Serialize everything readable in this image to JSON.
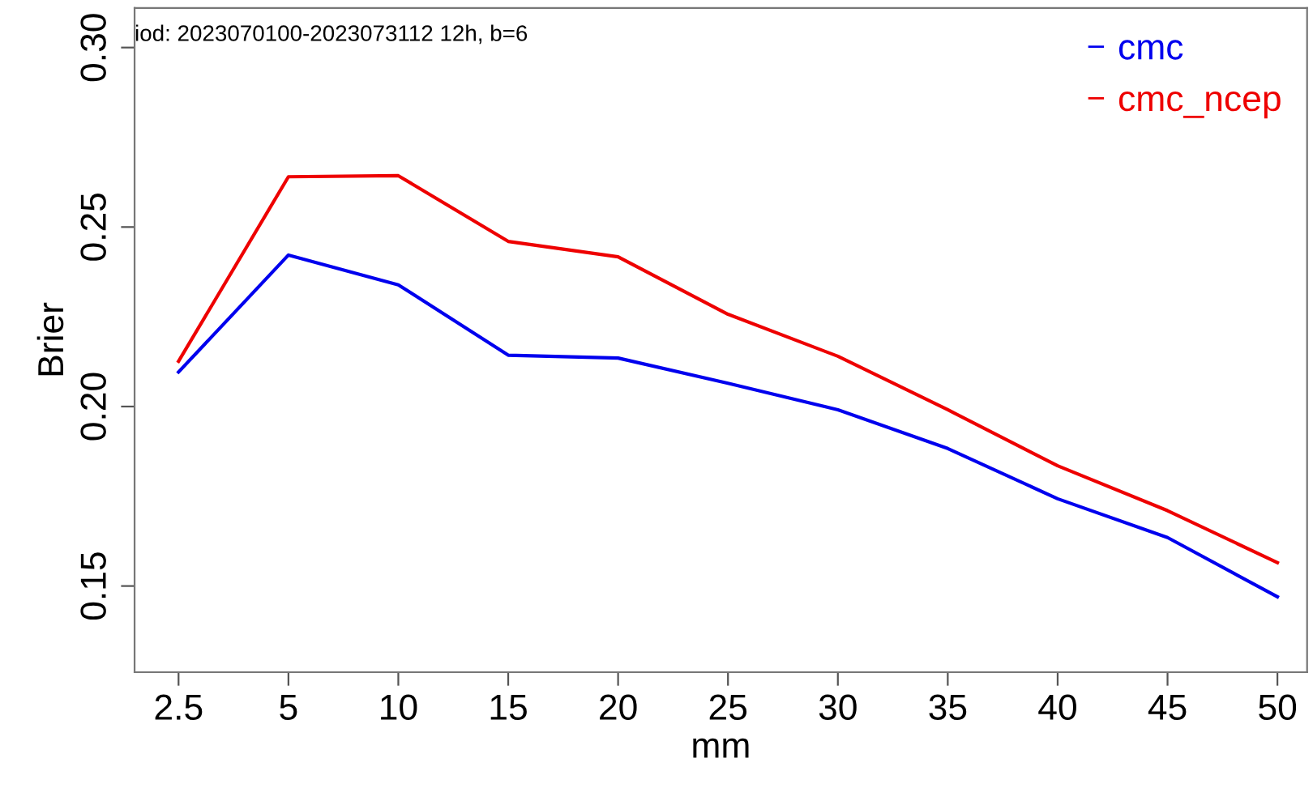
{
  "chart_data": {
    "type": "line",
    "title": "iod: 2023070100-2023073112 12h, b=6",
    "xlabel": "mm",
    "ylabel": "Brier",
    "categories": [
      "2.5",
      "5",
      "10",
      "15",
      "20",
      "25",
      "30",
      "35",
      "40",
      "45",
      "50"
    ],
    "series": [
      {
        "name": "cmc",
        "color": "#0000ee",
        "values": [
          0.2096,
          0.2422,
          0.2339,
          0.2143,
          0.2135,
          0.2065,
          0.1991,
          0.1883,
          0.1743,
          0.1635,
          0.147
        ]
      },
      {
        "name": "cmc_ncep",
        "color": "#ee0000",
        "values": [
          0.2126,
          0.264,
          0.2643,
          0.246,
          0.2417,
          0.2257,
          0.214,
          0.1991,
          0.1835,
          0.171,
          0.1565
        ]
      }
    ],
    "ylim": [
      0.126,
      0.311
    ],
    "yticks": [
      {
        "value": 0.15,
        "label": "0.15"
      },
      {
        "value": 0.2,
        "label": "0.20"
      },
      {
        "value": 0.25,
        "label": "0.25"
      },
      {
        "value": 0.3,
        "label": "0.30"
      }
    ],
    "legend": "top right",
    "grid": false,
    "marker": "none",
    "line_style": "solid"
  }
}
